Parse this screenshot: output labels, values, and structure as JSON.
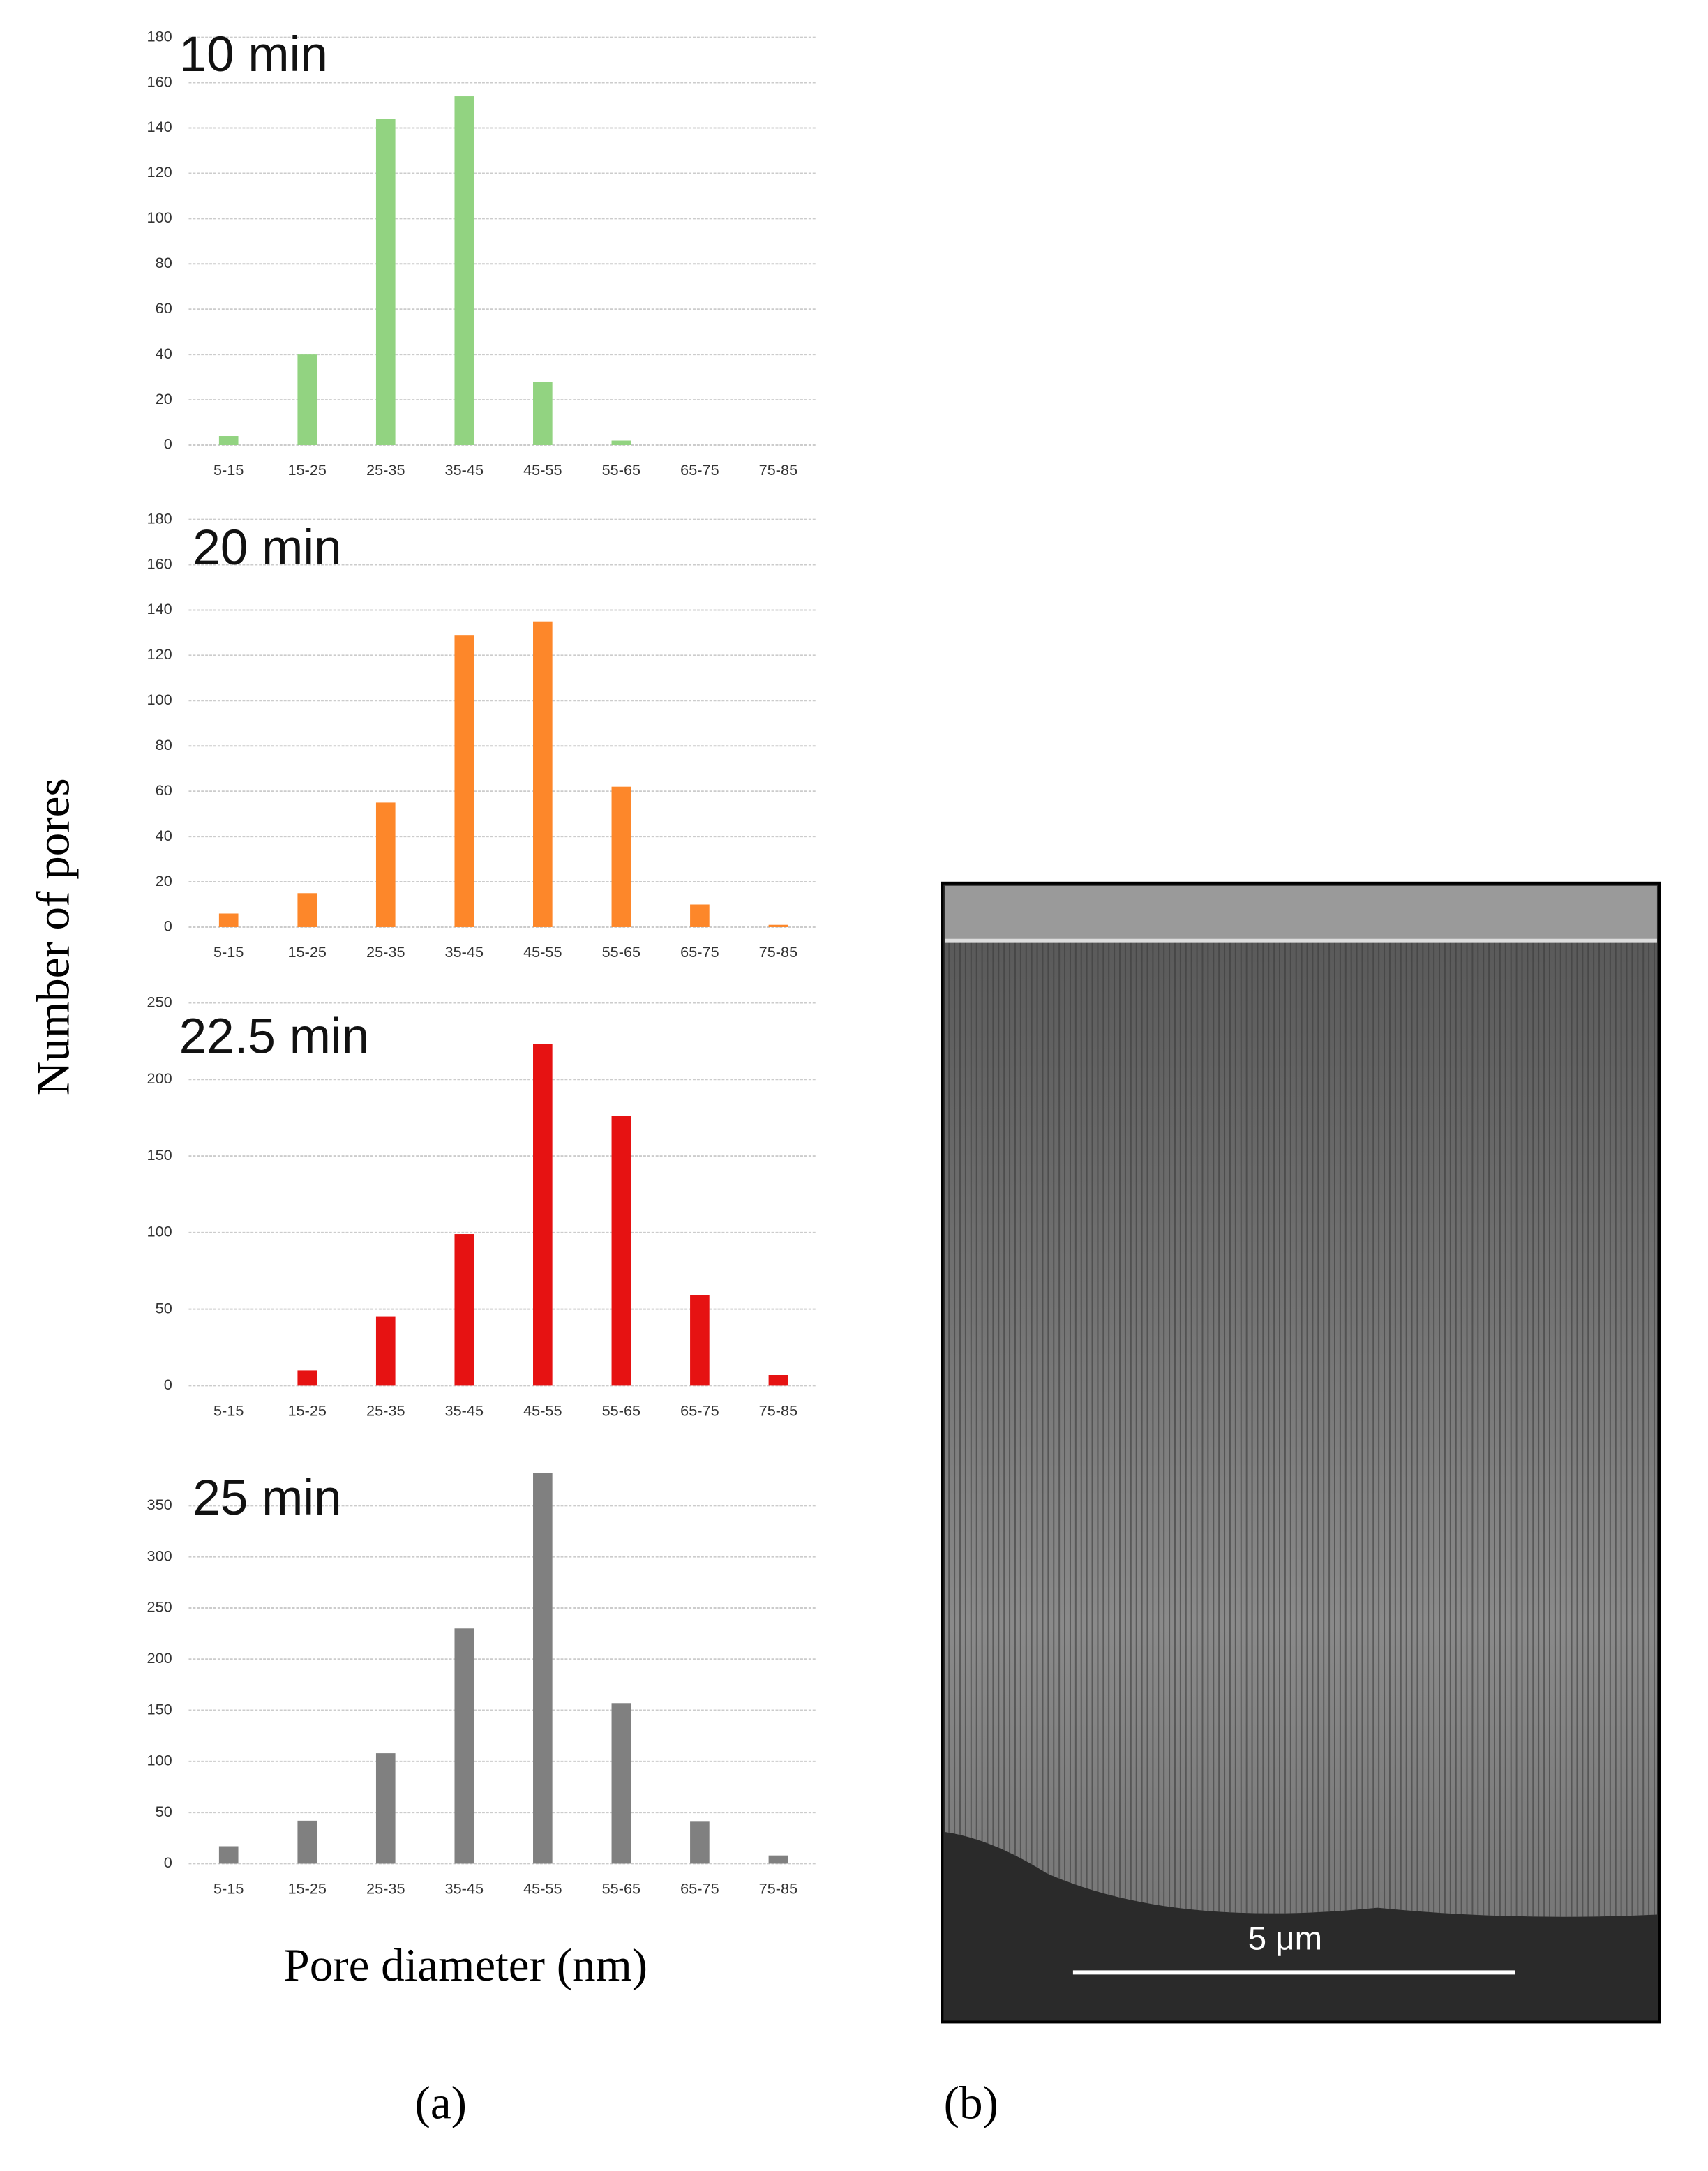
{
  "chart_data": [
    {
      "type": "bar",
      "title": "10 min",
      "categories": [
        "5-15",
        "15-25",
        "25-35",
        "35-45",
        "45-55",
        "55-65",
        "65-75",
        "75-85"
      ],
      "values": [
        4,
        40,
        144,
        154,
        28,
        2,
        0,
        0
      ],
      "color": "#92d381",
      "ylim": [
        0,
        180
      ],
      "yticks": [
        0,
        20,
        40,
        60,
        80,
        100,
        120,
        140,
        160,
        180
      ],
      "grid": true
    },
    {
      "type": "bar",
      "title": "20 min",
      "categories": [
        "5-15",
        "15-25",
        "25-35",
        "35-45",
        "45-55",
        "55-65",
        "65-75",
        "75-85"
      ],
      "values": [
        6,
        15,
        55,
        129,
        135,
        62,
        10,
        1
      ],
      "color": "#fd872a",
      "ylim": [
        0,
        180
      ],
      "yticks": [
        0,
        20,
        40,
        60,
        80,
        100,
        120,
        140,
        160,
        180
      ],
      "grid": true
    },
    {
      "type": "bar",
      "title": "22.5 min",
      "categories": [
        "5-15",
        "15-25",
        "25-35",
        "35-45",
        "45-55",
        "55-65",
        "65-75",
        "75-85"
      ],
      "values": [
        0,
        10,
        45,
        99,
        223,
        176,
        59,
        7
      ],
      "color": "#e61212",
      "ylim": [
        0,
        250
      ],
      "yticks": [
        0,
        50,
        100,
        150,
        200,
        250
      ],
      "grid": true
    },
    {
      "type": "bar",
      "title": "25 min",
      "categories": [
        "5-15",
        "15-25",
        "25-35",
        "35-45",
        "45-55",
        "55-65",
        "65-75",
        "75-85"
      ],
      "values": [
        17,
        42,
        108,
        230,
        382,
        157,
        41,
        8
      ],
      "color": "#808080",
      "ylim": [
        0,
        400
      ],
      "yticks": [
        0,
        50,
        100,
        150,
        200,
        250,
        300,
        350
      ],
      "grid": true
    }
  ],
  "y_label": "Number of pores",
  "x_label": "Pore diameter (nm)",
  "scale_bar": "5 μm",
  "panel_labels": [
    "(a)",
    "(b)"
  ]
}
